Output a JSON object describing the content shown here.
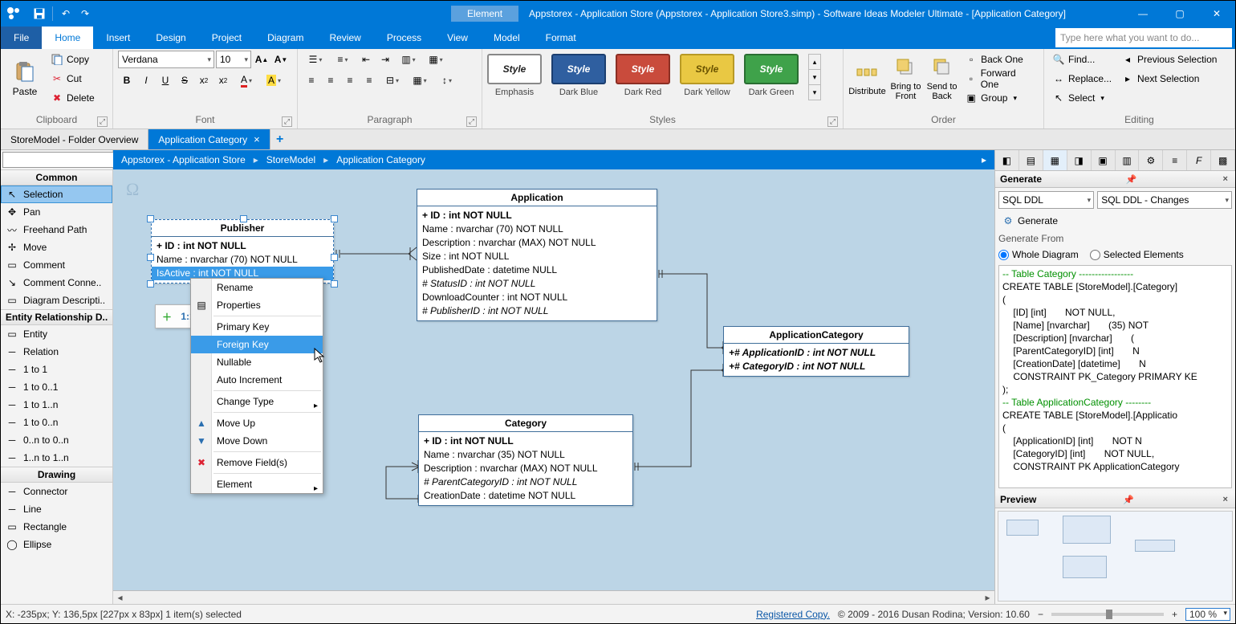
{
  "titlebar": {
    "context_tab": "Element",
    "title": "Appstorex - Application Store (Appstorex - Application Store3.simp)  - Software Ideas Modeler Ultimate - [Application Category]"
  },
  "ribbon_tabs": [
    "Home",
    "Insert",
    "Design",
    "Project",
    "Diagram",
    "Review",
    "Process",
    "View",
    "Model",
    "Format"
  ],
  "ribbon_tabs_file": "File",
  "help_placeholder": "Type here what you want to do...",
  "clipboard": {
    "paste": "Paste",
    "copy": "Copy",
    "cut": "Cut",
    "delete": "Delete",
    "group": "Clipboard"
  },
  "font": {
    "name": "Verdana",
    "size": "10",
    "group": "Font"
  },
  "para": {
    "group": "Paragraph"
  },
  "styles": {
    "group": "Styles",
    "items": [
      {
        "label": "Emphasis",
        "text": "Style",
        "bg": "#ffffff",
        "fg": "#222",
        "border": "#888"
      },
      {
        "label": "Dark Blue",
        "text": "Style",
        "bg": "#2f5fa0",
        "fg": "#fff",
        "border": "#1c3f70"
      },
      {
        "label": "Dark Red",
        "text": "Style",
        "bg": "#c94b3c",
        "fg": "#fff",
        "border": "#8c2f24"
      },
      {
        "label": "Dark Yellow",
        "text": "Style",
        "bg": "#e9c843",
        "fg": "#6a5300",
        "border": "#b89a25"
      },
      {
        "label": "Dark Green",
        "text": "Style",
        "bg": "#3fa24a",
        "fg": "#fff",
        "border": "#2a6e32"
      }
    ]
  },
  "order": {
    "group": "Order",
    "distribute": "Distribute",
    "front": "Bring to Front",
    "back": "Send to Back",
    "back_one": "Back One",
    "forward_one": "Forward One",
    "group_btn": "Group"
  },
  "editing": {
    "group": "Editing",
    "find": "Find...",
    "replace": "Replace...",
    "select": "Select",
    "prev": "Previous Selection",
    "next": "Next Selection"
  },
  "doctabs": {
    "t1": "StoreModel - Folder Overview",
    "t2": "Application Category"
  },
  "toolbox": {
    "headers": {
      "common": "Common",
      "erd": "Entity Relationship D..",
      "drawing": "Drawing"
    },
    "common": [
      "Selection",
      "Pan",
      "Freehand Path",
      "Move",
      "Comment",
      "Comment Conne..",
      "Diagram Descripti.."
    ],
    "erd": [
      "Entity",
      "Relation",
      "1 to 1",
      "1 to 0..1",
      "1 to 1..n",
      "1 to 0..n",
      "0..n to 0..n",
      "1..n to 1..n"
    ],
    "drawing": [
      "Connector",
      "Line",
      "Rectangle",
      "Ellipse"
    ]
  },
  "breadcrumb": [
    "Appstorex - Application Store",
    "StoreModel",
    "Application Category"
  ],
  "entities": {
    "publisher": {
      "title": "Publisher",
      "rows": [
        "+ ID : int NOT NULL",
        "Name : nvarchar (70)  NOT NULL",
        "IsActive : int NOT NULL"
      ]
    },
    "application": {
      "title": "Application",
      "rows": [
        "+ ID : int NOT NULL",
        "Name : nvarchar (70)  NOT NULL",
        "Description : nvarchar (MAX)  NOT NULL",
        "Size : int NOT NULL",
        "PublishedDate : datetime NULL",
        "# StatusID : int NOT NULL",
        "DownloadCounter : int NOT NULL",
        "# PublisherID : int NOT NULL"
      ]
    },
    "appcat": {
      "title": "ApplicationCategory",
      "rows": [
        "+# ApplicationID : int NOT NULL",
        "+# CategoryID : int NOT NULL"
      ]
    },
    "category": {
      "title": "Category",
      "rows": [
        "+ ID : int NOT NULL",
        "Name : nvarchar (35)  NOT NULL",
        "Description : nvarchar (MAX)  NOT NULL",
        "# ParentCategoryID : int NOT NULL",
        "CreationDate : datetime NOT NULL"
      ]
    }
  },
  "fasttb": "1:1",
  "context_menu": {
    "items": [
      {
        "label": "Rename"
      },
      {
        "label": "Properties",
        "icon": "props"
      },
      {
        "sep": true
      },
      {
        "label": "Primary Key"
      },
      {
        "label": "Foreign Key",
        "hover": true
      },
      {
        "label": "Nullable"
      },
      {
        "label": "Auto Increment"
      },
      {
        "sep": true
      },
      {
        "label": "Change Type",
        "sub": true
      },
      {
        "sep": true
      },
      {
        "label": "Move Up",
        "icon": "up"
      },
      {
        "label": "Move Down",
        "icon": "down"
      },
      {
        "sep": true
      },
      {
        "label": "Remove Field(s)",
        "icon": "remove"
      },
      {
        "sep": true
      },
      {
        "label": "Element",
        "sub": true
      }
    ]
  },
  "generate": {
    "title": "Generate",
    "combo1": "SQL DDL",
    "combo2": "SQL DDL - Changes",
    "btn": "Generate",
    "from": "Generate From",
    "radio1": "Whole Diagram",
    "radio2": "Selected Elements",
    "sql_lines": [
      {
        "t": "-- Table Category -----------------",
        "c": true
      },
      {
        "t": "CREATE TABLE [StoreModel].[Category]"
      },
      {
        "t": "("
      },
      {
        "t": "    [ID] [int]       NOT NULL,"
      },
      {
        "t": "    [Name] [nvarchar]       (35) NOT"
      },
      {
        "t": "    [Description] [nvarchar]       ("
      },
      {
        "t": "    [ParentCategoryID] [int]       N"
      },
      {
        "t": "    [CreationDate] [datetime]       N"
      },
      {
        "t": "    CONSTRAINT PK_Category PRIMARY KE"
      },
      {
        "t": ");"
      },
      {
        "t": ""
      },
      {
        "t": ""
      },
      {
        "t": "-- Table ApplicationCategory --------",
        "c": true
      },
      {
        "t": "CREATE TABLE [StoreModel].[Applicatio"
      },
      {
        "t": "("
      },
      {
        "t": "    [ApplicationID] [int]       NOT N"
      },
      {
        "t": "    [CategoryID] [int]       NOT NULL,"
      },
      {
        "t": "    CONSTRAINT PK ApplicationCategory"
      }
    ]
  },
  "preview": {
    "title": "Preview"
  },
  "status": {
    "left": "X: -235px; Y: 136,5px  [227px x 83px] 1 item(s) selected",
    "reg": "Registered Copy.",
    "copy": "© 2009 - 2016 Dusan Rodina; Version: 10.60",
    "zoom": "100 %"
  }
}
